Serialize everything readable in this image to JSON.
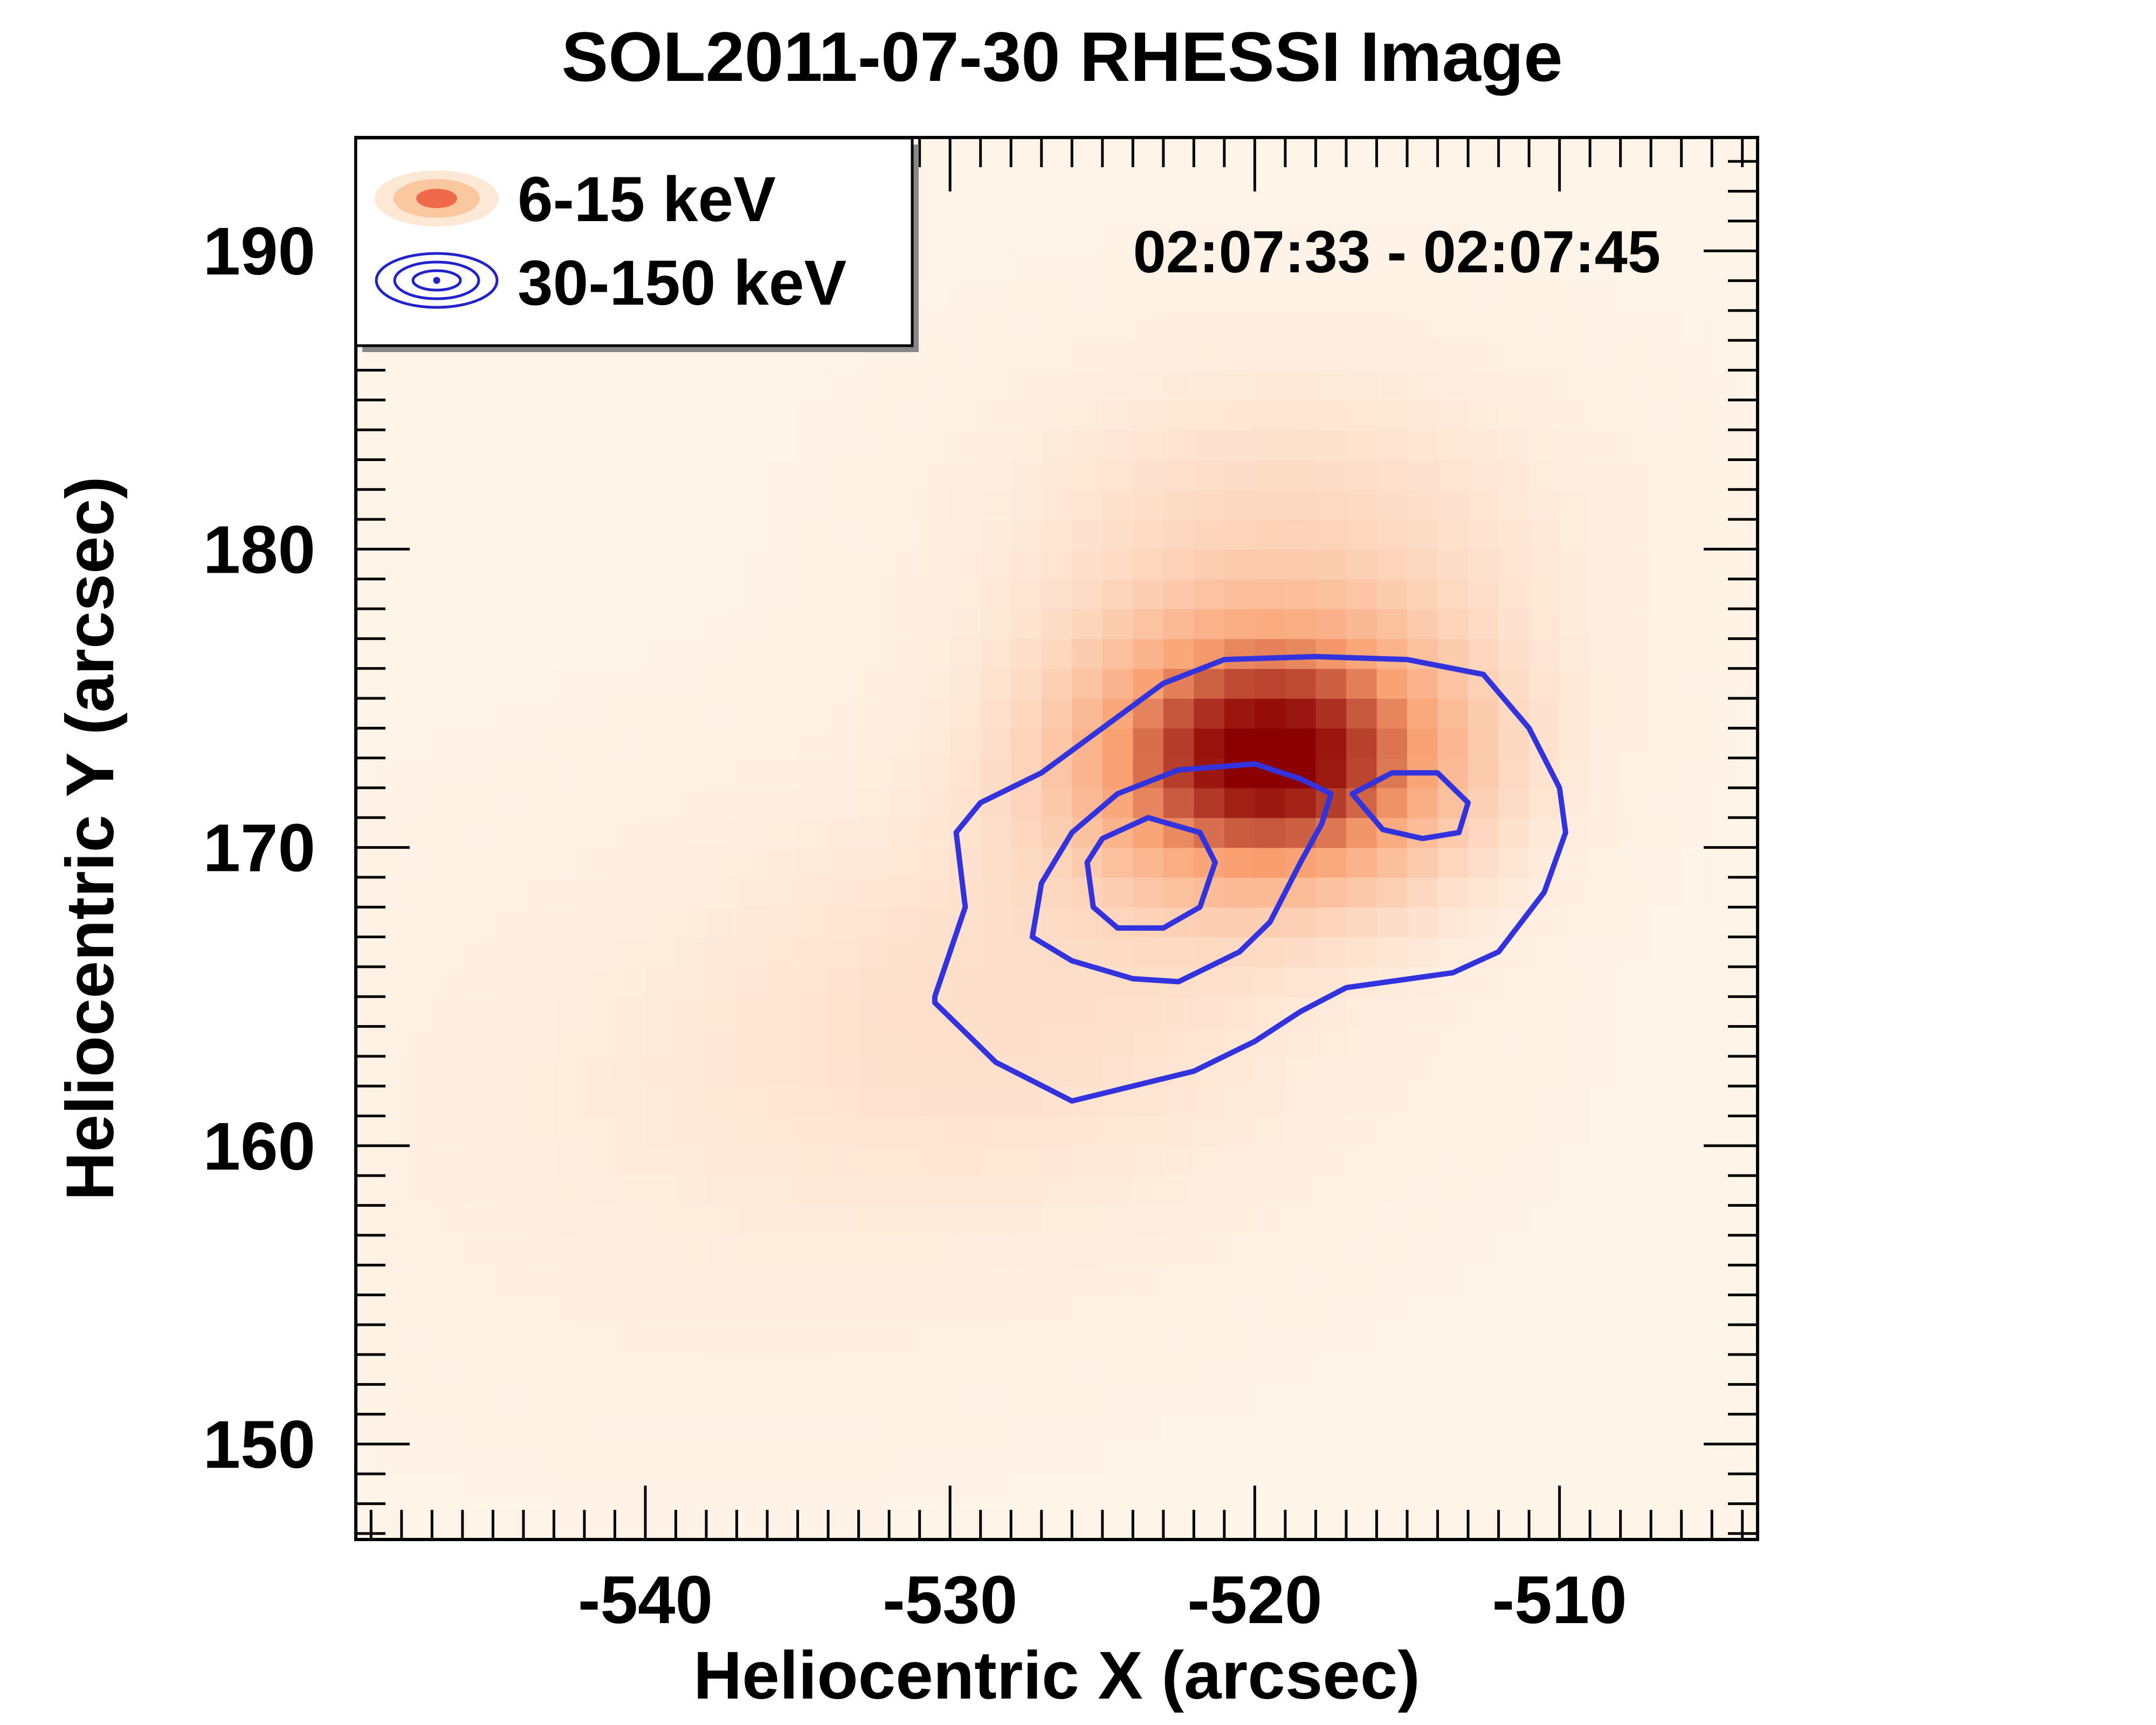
{
  "chart_data": {
    "type": "heatmap",
    "title": "SOL2011-07-30 RHESSI Image",
    "xlabel": "Heliocentric X (arcsec)",
    "ylabel": "Heliocentric Y (arcsec)",
    "xlim": [
      -549.5,
      -503.5
    ],
    "ylim": [
      146.8,
      193.8
    ],
    "xticks": [
      -540,
      -530,
      -520,
      -510
    ],
    "yticks": [
      150,
      160,
      170,
      180,
      190
    ],
    "time_range": "02:07:33 - 02:07:45",
    "legend_position": "top-left",
    "colors": {
      "heatmap_low": "#fff4e8",
      "heatmap_mid": "#f9a070",
      "heatmap_high": "#8b0000",
      "contour": "#3333dd"
    },
    "series": [
      {
        "name": "6-15 keV",
        "kind": "thermal-heatmap",
        "peak": {
          "x": -519.5,
          "y": 173.0,
          "sigma_x": 4.2,
          "sigma_y": 3.0
        },
        "secondary": [
          {
            "x": -519.0,
            "y": 180.0,
            "amp": 0.18,
            "sigma_x": 6.0,
            "sigma_y": 4.0
          },
          {
            "x": -527.0,
            "y": 165.0,
            "amp": 0.12,
            "sigma_x": 7.0,
            "sigma_y": 5.0
          },
          {
            "x": -538.0,
            "y": 161.0,
            "amp": 0.05,
            "sigma_x": 8.0,
            "sigma_y": 6.0
          }
        ],
        "pixel_size_arcsec": 1.0
      },
      {
        "name": "30-150 keV",
        "kind": "contours",
        "contours": [
          {
            "level": "outer",
            "points": [
              [
                -530.5,
                165.0
              ],
              [
                -530.0,
                166.5
              ],
              [
                -529.5,
                168.0
              ],
              [
                -529.8,
                170.5
              ],
              [
                -529.0,
                171.5
              ],
              [
                -527.0,
                172.5
              ],
              [
                -525.0,
                174.0
              ],
              [
                -523.0,
                175.5
              ],
              [
                -521.0,
                176.3
              ],
              [
                -518.0,
                176.4
              ],
              [
                -515.0,
                176.3
              ],
              [
                -512.5,
                175.8
              ],
              [
                -511.0,
                174.0
              ],
              [
                -510.0,
                172.0
              ],
              [
                -509.8,
                170.5
              ],
              [
                -510.5,
                168.5
              ],
              [
                -512.0,
                166.5
              ],
              [
                -513.5,
                165.8
              ],
              [
                -517.0,
                165.3
              ],
              [
                -518.5,
                164.5
              ],
              [
                -520.0,
                163.5
              ],
              [
                -522.0,
                162.5
              ],
              [
                -524.0,
                162.0
              ],
              [
                -526.0,
                161.5
              ],
              [
                -528.5,
                162.8
              ],
              [
                -530.5,
                164.8
              ],
              [
                -530.5,
                165.0
              ]
            ]
          },
          {
            "level": "middle",
            "points": [
              [
                -527.3,
                167.0
              ],
              [
                -527.0,
                168.8
              ],
              [
                -526.0,
                170.5
              ],
              [
                -524.5,
                171.8
              ],
              [
                -522.5,
                172.6
              ],
              [
                -520.0,
                172.8
              ],
              [
                -518.5,
                172.3
              ],
              [
                -517.5,
                171.8
              ],
              [
                -517.8,
                170.8
              ],
              [
                -518.5,
                169.5
              ],
              [
                -519.5,
                167.5
              ],
              [
                -520.5,
                166.5
              ],
              [
                -522.5,
                165.5
              ],
              [
                -524.0,
                165.6
              ],
              [
                -526.0,
                166.2
              ],
              [
                -527.3,
                167.0
              ]
            ]
          },
          {
            "level": "inner-left",
            "points": [
              [
                -525.5,
                169.5
              ],
              [
                -525.3,
                168.0
              ],
              [
                -524.5,
                167.3
              ],
              [
                -523.0,
                167.3
              ],
              [
                -521.8,
                168.0
              ],
              [
                -521.3,
                169.5
              ],
              [
                -521.8,
                170.5
              ],
              [
                -523.5,
                171.0
              ],
              [
                -525.0,
                170.3
              ],
              [
                -525.5,
                169.5
              ]
            ]
          },
          {
            "level": "inner-right",
            "points": [
              [
                -516.8,
                171.8
              ],
              [
                -515.5,
                172.5
              ],
              [
                -514.0,
                172.5
              ],
              [
                -513.0,
                171.5
              ],
              [
                -513.3,
                170.5
              ],
              [
                -514.5,
                170.3
              ],
              [
                -515.8,
                170.6
              ],
              [
                -516.8,
                171.8
              ]
            ]
          }
        ]
      }
    ]
  },
  "legend": {
    "items": [
      {
        "label": "6-15 keV"
      },
      {
        "label": "30-150 keV"
      }
    ]
  }
}
